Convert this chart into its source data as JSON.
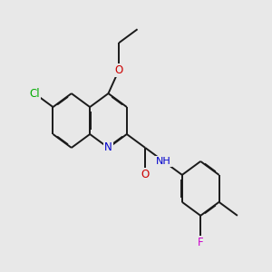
{
  "bg_color": "#e8e8e8",
  "bond_color": "#1a1a1a",
  "bond_lw": 1.4,
  "dbl_off": 0.022,
  "colors": {
    "Cl": "#00aa00",
    "O": "#cc0000",
    "N": "#0000cc",
    "F": "#cc00cc",
    "C": "#1a1a1a"
  },
  "figsize": [
    3.0,
    3.0
  ],
  "dpi": 100
}
